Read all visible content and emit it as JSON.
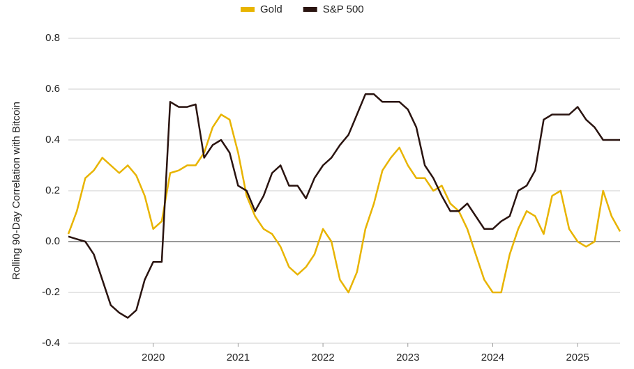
{
  "chart_data": {
    "type": "line",
    "y_label": "Rolling 90-Day Correlation with Bitcoin",
    "x": [
      2019.0,
      2019.1,
      2019.2,
      2019.3,
      2019.4,
      2019.5,
      2019.6,
      2019.7,
      2019.8,
      2019.9,
      2020.0,
      2020.1,
      2020.2,
      2020.3,
      2020.4,
      2020.5,
      2020.6,
      2020.7,
      2020.8,
      2020.9,
      2021.0,
      2021.1,
      2021.2,
      2021.3,
      2021.4,
      2021.5,
      2021.6,
      2021.7,
      2021.8,
      2021.9,
      2022.0,
      2022.1,
      2022.2,
      2022.3,
      2022.4,
      2022.5,
      2022.6,
      2022.7,
      2022.8,
      2022.9,
      2023.0,
      2023.1,
      2023.2,
      2023.3,
      2023.4,
      2023.5,
      2023.6,
      2023.7,
      2023.8,
      2023.9,
      2024.0,
      2024.1,
      2024.2,
      2024.3,
      2024.4,
      2024.5,
      2024.6,
      2024.7,
      2024.8,
      2024.9,
      2025.0,
      2025.1,
      2025.2,
      2025.3,
      2025.4,
      2025.5
    ],
    "series": [
      {
        "name": "Gold",
        "color": "#e8b400",
        "values": [
          0.03,
          0.12,
          0.25,
          0.28,
          0.33,
          0.3,
          0.27,
          0.3,
          0.26,
          0.18,
          0.05,
          0.08,
          0.27,
          0.28,
          0.3,
          0.3,
          0.35,
          0.45,
          0.5,
          0.48,
          0.35,
          0.18,
          0.1,
          0.05,
          0.03,
          -0.02,
          -0.1,
          -0.13,
          -0.1,
          -0.05,
          0.05,
          0.0,
          -0.15,
          -0.2,
          -0.12,
          0.05,
          0.15,
          0.28,
          0.33,
          0.37,
          0.3,
          0.25,
          0.25,
          0.2,
          0.22,
          0.15,
          0.12,
          0.05,
          -0.05,
          -0.15,
          -0.2,
          -0.2,
          -0.05,
          0.05,
          0.12,
          0.1,
          0.03,
          0.18,
          0.2,
          0.05,
          0.0,
          -0.02,
          0.0,
          0.2,
          0.1,
          0.04
        ]
      },
      {
        "name": "S&P 500",
        "color": "#2a1410",
        "values": [
          0.02,
          0.01,
          0.0,
          -0.05,
          -0.15,
          -0.25,
          -0.28,
          -0.3,
          -0.27,
          -0.15,
          -0.08,
          -0.08,
          0.55,
          0.53,
          0.53,
          0.54,
          0.33,
          0.38,
          0.4,
          0.35,
          0.22,
          0.2,
          0.12,
          0.18,
          0.27,
          0.3,
          0.22,
          0.22,
          0.17,
          0.25,
          0.3,
          0.33,
          0.38,
          0.42,
          0.5,
          0.58,
          0.58,
          0.55,
          0.55,
          0.55,
          0.52,
          0.45,
          0.3,
          0.25,
          0.18,
          0.12,
          0.12,
          0.15,
          0.1,
          0.05,
          0.05,
          0.08,
          0.1,
          0.2,
          0.22,
          0.28,
          0.48,
          0.5,
          0.5,
          0.5,
          0.53,
          0.48,
          0.45,
          0.4,
          0.4,
          0.4
        ]
      }
    ],
    "xlim": [
      2019.0,
      2025.5
    ],
    "xticks": [
      2020,
      2021,
      2022,
      2023,
      2024,
      2025
    ],
    "ylim": [
      -0.4,
      0.8
    ],
    "yticks": [
      {
        "value": -0.4,
        "label": "-0.4"
      },
      {
        "value": -0.2,
        "label": "-0.2"
      },
      {
        "value": 0,
        "label": "0.0"
      },
      {
        "value": 0.2,
        "label": "0.2"
      },
      {
        "value": 0.4,
        "label": "0.4"
      },
      {
        "value": 0.6,
        "label": "0.6"
      },
      {
        "value": 0.8,
        "label": "0.8"
      }
    ],
    "grid": true,
    "legend": "top"
  }
}
